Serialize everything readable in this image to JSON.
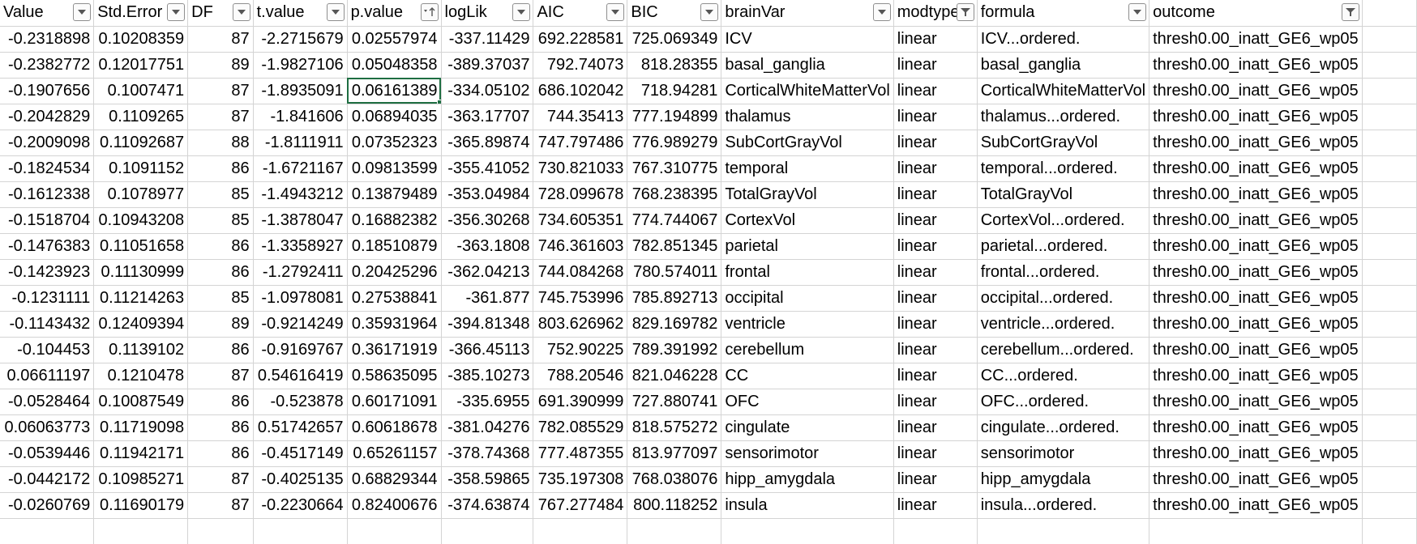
{
  "columns": [
    {
      "name": "Value",
      "filter": "plain"
    },
    {
      "name": "Std.Error",
      "filter": "plain"
    },
    {
      "name": "DF",
      "filter": "plain"
    },
    {
      "name": "t.value",
      "filter": "plain"
    },
    {
      "name": "p.value",
      "filter": "sort-asc"
    },
    {
      "name": "logLik",
      "filter": "plain"
    },
    {
      "name": "AIC",
      "filter": "plain"
    },
    {
      "name": "BIC",
      "filter": "plain"
    },
    {
      "name": "brainVar",
      "filter": "plain"
    },
    {
      "name": "modtype",
      "filter": "filtered"
    },
    {
      "name": "formula",
      "filter": "plain"
    },
    {
      "name": "outcome",
      "filter": "filtered"
    }
  ],
  "rows": [
    [
      "-0.2318898",
      "0.10208359",
      "87",
      "-2.2715679",
      "0.02557974",
      "-337.11429",
      "692.228581",
      "725.069349",
      "ICV",
      "linear",
      "ICV...ordered.",
      "thresh0.00_inatt_GE6_wp05"
    ],
    [
      "-0.2382772",
      "0.12017751",
      "89",
      "-1.9827106",
      "0.05048358",
      "-389.37037",
      "792.74073",
      "818.28355",
      "basal_ganglia",
      "linear",
      "basal_ganglia",
      "thresh0.00_inatt_GE6_wp05"
    ],
    [
      "-0.1907656",
      "0.1007471",
      "87",
      "-1.8935091",
      "0.06161389",
      "-334.05102",
      "686.102042",
      "718.94281",
      "CorticalWhiteMatterVol",
      "linear",
      "CorticalWhiteMatterVol",
      "thresh0.00_inatt_GE6_wp05"
    ],
    [
      "-0.2042829",
      "0.1109265",
      "87",
      "-1.841606",
      "0.06894035",
      "-363.17707",
      "744.35413",
      "777.194899",
      "thalamus",
      "linear",
      "thalamus...ordered.",
      "thresh0.00_inatt_GE6_wp05"
    ],
    [
      "-0.2009098",
      "0.11092687",
      "88",
      "-1.8111911",
      "0.07352323",
      "-365.89874",
      "747.797486",
      "776.989279",
      "SubCortGrayVol",
      "linear",
      "SubCortGrayVol",
      "thresh0.00_inatt_GE6_wp05"
    ],
    [
      "-0.1824534",
      "0.1091152",
      "86",
      "-1.6721167",
      "0.09813599",
      "-355.41052",
      "730.821033",
      "767.310775",
      "temporal",
      "linear",
      "temporal...ordered.",
      "thresh0.00_inatt_GE6_wp05"
    ],
    [
      "-0.1612338",
      "0.1078977",
      "85",
      "-1.4943212",
      "0.13879489",
      "-353.04984",
      "728.099678",
      "768.238395",
      "TotalGrayVol",
      "linear",
      "TotalGrayVol",
      "thresh0.00_inatt_GE6_wp05"
    ],
    [
      "-0.1518704",
      "0.10943208",
      "85",
      "-1.3878047",
      "0.16882382",
      "-356.30268",
      "734.605351",
      "774.744067",
      "CortexVol",
      "linear",
      "CortexVol...ordered.",
      "thresh0.00_inatt_GE6_wp05"
    ],
    [
      "-0.1476383",
      "0.11051658",
      "86",
      "-1.3358927",
      "0.18510879",
      "-363.1808",
      "746.361603",
      "782.851345",
      "parietal",
      "linear",
      "parietal...ordered.",
      "thresh0.00_inatt_GE6_wp05"
    ],
    [
      "-0.1423923",
      "0.11130999",
      "86",
      "-1.2792411",
      "0.20425296",
      "-362.04213",
      "744.084268",
      "780.574011",
      "frontal",
      "linear",
      "frontal...ordered.",
      "thresh0.00_inatt_GE6_wp05"
    ],
    [
      "-0.1231111",
      "0.11214263",
      "85",
      "-1.0978081",
      "0.27538841",
      "-361.877",
      "745.753996",
      "785.892713",
      "occipital",
      "linear",
      "occipital...ordered.",
      "thresh0.00_inatt_GE6_wp05"
    ],
    [
      "-0.1143432",
      "0.12409394",
      "89",
      "-0.9214249",
      "0.35931964",
      "-394.81348",
      "803.626962",
      "829.169782",
      "ventricle",
      "linear",
      "ventricle...ordered.",
      "thresh0.00_inatt_GE6_wp05"
    ],
    [
      "-0.104453",
      "0.1139102",
      "86",
      "-0.9169767",
      "0.36171919",
      "-366.45113",
      "752.90225",
      "789.391992",
      "cerebellum",
      "linear",
      "cerebellum...ordered.",
      "thresh0.00_inatt_GE6_wp05"
    ],
    [
      "0.06611197",
      "0.1210478",
      "87",
      "0.54616419",
      "0.58635095",
      "-385.10273",
      "788.20546",
      "821.046228",
      "CC",
      "linear",
      "CC...ordered.",
      "thresh0.00_inatt_GE6_wp05"
    ],
    [
      "-0.0528464",
      "0.10087549",
      "86",
      "-0.523878",
      "0.60171091",
      "-335.6955",
      "691.390999",
      "727.880741",
      "OFC",
      "linear",
      "OFC...ordered.",
      "thresh0.00_inatt_GE6_wp05"
    ],
    [
      "0.06063773",
      "0.11719098",
      "86",
      "0.51742657",
      "0.60618678",
      "-381.04276",
      "782.085529",
      "818.575272",
      "cingulate",
      "linear",
      "cingulate...ordered.",
      "thresh0.00_inatt_GE6_wp05"
    ],
    [
      "-0.0539446",
      "0.11942171",
      "86",
      "-0.4517149",
      "0.65261157",
      "-378.74368",
      "777.487355",
      "813.977097",
      "sensorimotor",
      "linear",
      "sensorimotor",
      "thresh0.00_inatt_GE6_wp05"
    ],
    [
      "-0.0442172",
      "0.10985271",
      "87",
      "-0.4025135",
      "0.68829344",
      "-358.59865",
      "735.197308",
      "768.038076",
      "hipp_amygdala",
      "linear",
      "hipp_amygdala",
      "thresh0.00_inatt_GE6_wp05"
    ],
    [
      "-0.0260769",
      "0.11690179",
      "87",
      "-0.2230664",
      "0.82400676",
      "-374.63874",
      "767.277484",
      "800.118252",
      "insula",
      "linear",
      "insula...ordered.",
      "thresh0.00_inatt_GE6_wp05"
    ]
  ],
  "selected_cell": {
    "row": 2,
    "col": 4
  }
}
